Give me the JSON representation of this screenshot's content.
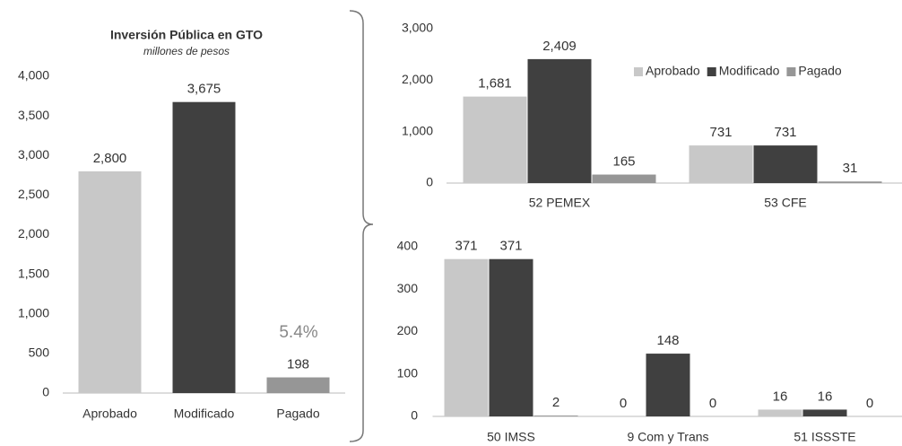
{
  "chart_data": [
    {
      "type": "bar",
      "title": "Inversión Pública en GTO",
      "subtitle": "millones de pesos",
      "categories": [
        "Aprobado",
        "Modificado",
        "Pagado"
      ],
      "values": [
        2800,
        3675,
        198
      ],
      "value_labels": [
        "2,800",
        "3,675",
        "198"
      ],
      "colors": [
        "#c8c8c8",
        "#404040",
        "#969696"
      ],
      "annotation": "5.4%",
      "ylim": [
        0,
        4000
      ],
      "yticks": [
        0,
        500,
        {
          "value": 1000,
          "label": "1,000"
        },
        {
          "value": 1500,
          "label": "1,500"
        },
        {
          "value": 2000,
          "label": "2,000"
        },
        {
          "value": 2500,
          "label": "2,500"
        },
        {
          "value": 3000,
          "label": "3,000"
        },
        {
          "value": 3500,
          "label": "3,500"
        },
        {
          "value": 4000,
          "label": "4,000"
        }
      ]
    },
    {
      "type": "grouped_bar",
      "categories": [
        "52 PEMEX",
        "53 CFE"
      ],
      "series": [
        {
          "name": "Aprobado",
          "color": "#c8c8c8",
          "values": [
            1681,
            731
          ],
          "value_labels": [
            "1,681",
            "731"
          ]
        },
        {
          "name": "Modificado",
          "color": "#404040",
          "values": [
            2409,
            731
          ],
          "value_labels": [
            "2,409",
            "731"
          ]
        },
        {
          "name": "Pagado",
          "color": "#969696",
          "values": [
            165,
            31
          ]
        }
      ],
      "ylim": [
        0,
        3000
      ],
      "yticks": [
        0,
        {
          "value": 1000,
          "label": "1,000"
        },
        {
          "value": 2000,
          "label": "2,000"
        },
        {
          "value": 3000,
          "label": "3,000"
        }
      ],
      "legend": "top-right"
    },
    {
      "type": "grouped_bar",
      "categories": [
        "50 IMSS",
        "9 Com y Trans",
        "51 ISSSTE"
      ],
      "series": [
        {
          "color": "#c8c8c8",
          "values": [
            371,
            0,
            16
          ]
        },
        {
          "color": "#404040",
          "values": [
            371,
            148,
            16
          ]
        },
        {
          "color": "#969696",
          "values": [
            2,
            0,
            0
          ]
        }
      ],
      "ylim": [
        0,
        400
      ],
      "yticks": [
        0,
        100,
        200,
        300,
        400
      ]
    }
  ]
}
